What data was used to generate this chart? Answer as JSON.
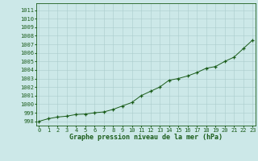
{
  "x": [
    0,
    1,
    2,
    3,
    4,
    5,
    6,
    7,
    8,
    9,
    10,
    11,
    12,
    13,
    14,
    15,
    16,
    17,
    18,
    19,
    20,
    21,
    22,
    23
  ],
  "y": [
    998.0,
    998.3,
    998.5,
    998.6,
    998.8,
    998.85,
    999.0,
    999.1,
    999.4,
    999.8,
    1000.2,
    1001.0,
    1001.5,
    1002.0,
    1002.8,
    1003.0,
    1003.3,
    1003.7,
    1004.2,
    1004.4,
    1005.0,
    1005.5,
    1006.5,
    1007.5
  ],
  "xlabel": "Graphe pression niveau de la mer (hPa)",
  "ylim_min": 997.5,
  "ylim_max": 1011.8,
  "xlim_min": -0.3,
  "xlim_max": 23.3,
  "yticks": [
    998,
    999,
    1000,
    1001,
    1002,
    1003,
    1004,
    1005,
    1006,
    1007,
    1008,
    1009,
    1010,
    1011
  ],
  "xticks": [
    0,
    1,
    2,
    3,
    4,
    5,
    6,
    7,
    8,
    9,
    10,
    11,
    12,
    13,
    14,
    15,
    16,
    17,
    18,
    19,
    20,
    21,
    22,
    23
  ],
  "line_color": "#1a5c1a",
  "bg_color": "#cce8e8",
  "grid_color": "#aacccc",
  "label_color": "#1a5c1a",
  "font_family": "monospace",
  "tick_labelsize": 5.0,
  "xlabel_fontsize": 6.0
}
